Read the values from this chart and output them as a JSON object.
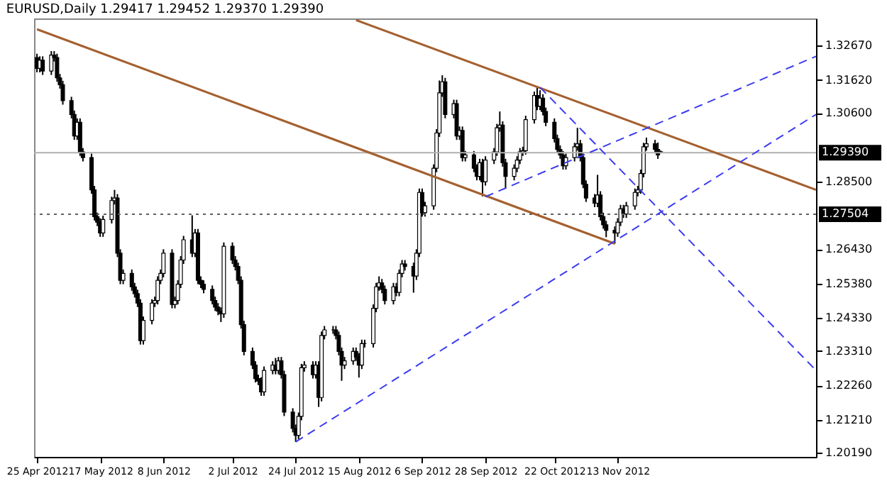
{
  "chart_data": {
    "type": "candlestick",
    "title": "EURUSD,Daily  1.29417 1.29452 1.29370 1.29390",
    "color": "#000000",
    "x": [
      "2012-04-25",
      "2012-04-26",
      "2012-04-27",
      "2012-04-30",
      "2012-05-01",
      "2012-05-02",
      "2012-05-03",
      "2012-05-04",
      "2012-05-07",
      "2012-05-08",
      "2012-05-09",
      "2012-05-10",
      "2012-05-11",
      "2012-05-14",
      "2012-05-15",
      "2012-05-16",
      "2012-05-17",
      "2012-05-18",
      "2012-05-21",
      "2012-05-22",
      "2012-05-23",
      "2012-05-24",
      "2012-05-25",
      "2012-05-28",
      "2012-05-29",
      "2012-05-30",
      "2012-05-31",
      "2012-06-01",
      "2012-06-04",
      "2012-06-05",
      "2012-06-06",
      "2012-06-07",
      "2012-06-08",
      "2012-06-11",
      "2012-06-12",
      "2012-06-13",
      "2012-06-14",
      "2012-06-15",
      "2012-06-18",
      "2012-06-19",
      "2012-06-20",
      "2012-06-21",
      "2012-06-22",
      "2012-06-25",
      "2012-06-26",
      "2012-06-27",
      "2012-06-28",
      "2012-06-29",
      "2012-07-02",
      "2012-07-03",
      "2012-07-04",
      "2012-07-05",
      "2012-07-06",
      "2012-07-09",
      "2012-07-10",
      "2012-07-11",
      "2012-07-12",
      "2012-07-13",
      "2012-07-16",
      "2012-07-17",
      "2012-07-18",
      "2012-07-19",
      "2012-07-20",
      "2012-07-23",
      "2012-07-24",
      "2012-07-25",
      "2012-07-26",
      "2012-07-27",
      "2012-07-30",
      "2012-07-31",
      "2012-08-01",
      "2012-08-02",
      "2012-08-03",
      "2012-08-06",
      "2012-08-07",
      "2012-08-08",
      "2012-08-09",
      "2012-08-10",
      "2012-08-13",
      "2012-08-14",
      "2012-08-15",
      "2012-08-16",
      "2012-08-17",
      "2012-08-20",
      "2012-08-21",
      "2012-08-22",
      "2012-08-23",
      "2012-08-24",
      "2012-08-27",
      "2012-08-28",
      "2012-08-29",
      "2012-08-30",
      "2012-08-31",
      "2012-09-03",
      "2012-09-04",
      "2012-09-05",
      "2012-09-06",
      "2012-09-07",
      "2012-09-10",
      "2012-09-11",
      "2012-09-12",
      "2012-09-13",
      "2012-09-14",
      "2012-09-17",
      "2012-09-18",
      "2012-09-19",
      "2012-09-20",
      "2012-09-21",
      "2012-09-24",
      "2012-09-25",
      "2012-09-26",
      "2012-09-27",
      "2012-09-28",
      "2012-10-01",
      "2012-10-02",
      "2012-10-03",
      "2012-10-04",
      "2012-10-05",
      "2012-10-08",
      "2012-10-09",
      "2012-10-10",
      "2012-10-11",
      "2012-10-12",
      "2012-10-15",
      "2012-10-16",
      "2012-10-17",
      "2012-10-18",
      "2012-10-19",
      "2012-10-22",
      "2012-10-23",
      "2012-10-24",
      "2012-10-25",
      "2012-10-26",
      "2012-10-29",
      "2012-10-30",
      "2012-10-31",
      "2012-11-01",
      "2012-11-02",
      "2012-11-05",
      "2012-11-06",
      "2012-11-07",
      "2012-11-08",
      "2012-11-09",
      "2012-11-12",
      "2012-11-13",
      "2012-11-14",
      "2012-11-15",
      "2012-11-16",
      "2012-11-19",
      "2012-11-20",
      "2012-11-21",
      "2012-11-22",
      "2012-11-23",
      "2012-11-26",
      "2012-11-27",
      "2012-11-28"
    ],
    "ohlc": [
      [
        1.323,
        1.3242,
        1.3185,
        1.3197
      ],
      [
        1.3197,
        1.3234,
        1.3185,
        1.3222
      ],
      [
        1.3222,
        1.3234,
        1.3177,
        1.3189
      ],
      [
        1.3189,
        1.325,
        1.3177,
        1.3238
      ],
      [
        1.3238,
        1.325,
        1.3218,
        1.323
      ],
      [
        1.323,
        1.3242,
        1.3156,
        1.3168
      ],
      [
        1.3168,
        1.318,
        1.3135,
        1.3147
      ],
      [
        1.3147,
        1.3159,
        1.3086,
        1.3098
      ],
      [
        1.3098,
        1.311,
        1.3044,
        1.3056
      ],
      [
        1.3056,
        1.3068,
        1.2978,
        1.299
      ],
      [
        1.299,
        1.3044,
        1.2978,
        1.3032
      ],
      [
        1.3032,
        1.3044,
        1.2929,
        1.2941
      ],
      [
        1.2941,
        1.2953,
        1.2912,
        1.2924
      ],
      [
        1.2924,
        1.2936,
        1.2813,
        1.2825
      ],
      [
        1.2825,
        1.2837,
        1.2731,
        1.2743
      ],
      [
        1.2743,
        1.2755,
        1.2714,
        1.2726
      ],
      [
        1.2726,
        1.2738,
        1.2681,
        1.2693
      ],
      [
        1.2693,
        1.2746,
        1.2681,
        1.2734
      ],
      [
        1.2734,
        1.2804,
        1.2722,
        1.2792
      ],
      [
        1.2792,
        1.2825,
        1.278,
        1.28
      ],
      [
        1.28,
        1.2812,
        1.2619,
        1.2631
      ],
      [
        1.2631,
        1.2643,
        1.2536,
        1.2548
      ],
      [
        1.2548,
        1.2581,
        1.2536,
        1.2569
      ],
      [
        1.2569,
        1.2581,
        1.2516,
        1.2528
      ],
      [
        1.2528,
        1.254,
        1.2495,
        1.2507
      ],
      [
        1.2507,
        1.2519,
        1.2466,
        1.2478
      ],
      [
        1.2478,
        1.249,
        1.2351,
        1.2363
      ],
      [
        1.2363,
        1.2437,
        1.2351,
        1.2425
      ],
      [
        1.2425,
        1.249,
        1.2413,
        1.2478
      ],
      [
        1.2478,
        1.2498,
        1.2466,
        1.2486
      ],
      [
        1.2486,
        1.256,
        1.2474,
        1.2548
      ],
      [
        1.2548,
        1.2581,
        1.2536,
        1.2569
      ],
      [
        1.2569,
        1.2643,
        1.2557,
        1.2631
      ],
      [
        1.2631,
        1.2643,
        1.2462,
        1.2474
      ],
      [
        1.2474,
        1.2498,
        1.2462,
        1.2486
      ],
      [
        1.2486,
        1.2548,
        1.2474,
        1.2536
      ],
      [
        1.2536,
        1.2622,
        1.2524,
        1.261
      ],
      [
        1.261,
        1.2684,
        1.2598,
        1.2672
      ],
      [
        1.2672,
        1.2747,
        1.2619,
        1.2631
      ],
      [
        1.2631,
        1.2705,
        1.2619,
        1.2693
      ],
      [
        1.2693,
        1.2705,
        1.2536,
        1.2548
      ],
      [
        1.2548,
        1.256,
        1.2524,
        1.2536
      ],
      [
        1.2536,
        1.2548,
        1.2508,
        1.252
      ],
      [
        1.252,
        1.2532,
        1.2474,
        1.2486
      ],
      [
        1.2486,
        1.2498,
        1.2454,
        1.2466
      ],
      [
        1.2466,
        1.2478,
        1.2441,
        1.2453
      ],
      [
        1.2453,
        1.2465,
        1.242,
        1.2445
      ],
      [
        1.2445,
        1.2664,
        1.2433,
        1.2652
      ],
      [
        1.2652,
        1.2664,
        1.2598,
        1.261
      ],
      [
        1.261,
        1.2622,
        1.2578,
        1.259
      ],
      [
        1.259,
        1.2602,
        1.2536,
        1.2548
      ],
      [
        1.2548,
        1.256,
        1.24,
        1.2412
      ],
      [
        1.2412,
        1.2424,
        1.2318,
        1.233
      ],
      [
        1.233,
        1.2342,
        1.2276,
        1.2288
      ],
      [
        1.2288,
        1.23,
        1.2235,
        1.2247
      ],
      [
        1.2247,
        1.2259,
        1.2227,
        1.2239
      ],
      [
        1.2239,
        1.2251,
        1.2194,
        1.2206
      ],
      [
        1.2206,
        1.2284,
        1.2194,
        1.2272
      ],
      [
        1.2272,
        1.23,
        1.226,
        1.2288
      ],
      [
        1.2288,
        1.231,
        1.226,
        1.2272
      ],
      [
        1.2272,
        1.2313,
        1.226,
        1.2301
      ],
      [
        1.2301,
        1.2313,
        1.2247,
        1.2259
      ],
      [
        1.2259,
        1.2271,
        1.2132,
        1.2144
      ],
      [
        1.2144,
        1.2156,
        1.2082,
        1.2094
      ],
      [
        1.2094,
        1.2106,
        1.2053,
        1.2073
      ],
      [
        1.2073,
        1.2143,
        1.2061,
        1.2131
      ],
      [
        1.2131,
        1.2292,
        1.2119,
        1.228
      ],
      [
        1.228,
        1.23,
        1.2268,
        1.2288
      ],
      [
        1.2288,
        1.23,
        1.2247,
        1.2259
      ],
      [
        1.2259,
        1.23,
        1.2247,
        1.2288
      ],
      [
        1.2288,
        1.23,
        1.216,
        1.2189
      ],
      [
        1.2189,
        1.2391,
        1.2177,
        1.2379
      ],
      [
        1.2379,
        1.2408,
        1.2367,
        1.2396
      ],
      [
        1.2396,
        1.2408,
        1.2384,
        1.2396
      ],
      [
        1.2396,
        1.2408,
        1.2367,
        1.2379
      ],
      [
        1.2379,
        1.2391,
        1.2318,
        1.233
      ],
      [
        1.233,
        1.2342,
        1.224,
        1.2288
      ],
      [
        1.2288,
        1.2313,
        1.2276,
        1.2301
      ],
      [
        1.2301,
        1.2342,
        1.2289,
        1.233
      ],
      [
        1.233,
        1.2342,
        1.2301,
        1.2313
      ],
      [
        1.2313,
        1.2325,
        1.225,
        1.2288
      ],
      [
        1.2288,
        1.2366,
        1.2276,
        1.2354
      ],
      [
        1.2354,
        1.2366,
        1.2342,
        1.2354
      ],
      [
        1.2354,
        1.2474,
        1.2342,
        1.2462
      ],
      [
        1.2462,
        1.254,
        1.245,
        1.2528
      ],
      [
        1.2528,
        1.256,
        1.2516,
        1.254
      ],
      [
        1.254,
        1.2552,
        1.2508,
        1.252
      ],
      [
        1.252,
        1.2532,
        1.2474,
        1.2486
      ],
      [
        1.2486,
        1.254,
        1.2474,
        1.2528
      ],
      [
        1.2528,
        1.254,
        1.2499,
        1.2511
      ],
      [
        1.2511,
        1.2581,
        1.2499,
        1.2569
      ],
      [
        1.2569,
        1.261,
        1.2557,
        1.2598
      ],
      [
        1.2598,
        1.261,
        1.2578,
        1.259
      ],
      [
        1.259,
        1.2602,
        1.251,
        1.2561
      ],
      [
        1.2561,
        1.2643,
        1.2549,
        1.2631
      ],
      [
        1.2631,
        1.2829,
        1.2619,
        1.2817
      ],
      [
        1.2817,
        1.2829,
        1.2743,
        1.2755
      ],
      [
        1.2755,
        1.2788,
        1.2743,
        1.2776
      ],
      [
        1.2776,
        1.2903,
        1.2764,
        1.2891
      ],
      [
        1.2891,
        1.3011,
        1.2879,
        1.2999
      ],
      [
        1.2999,
        1.316,
        1.2987,
        1.3122
      ],
      [
        1.3122,
        1.3176,
        1.311,
        1.3156
      ],
      [
        1.3156,
        1.3168,
        1.3044,
        1.3056
      ],
      [
        1.3056,
        1.3101,
        1.3044,
        1.3089
      ],
      [
        1.3089,
        1.3101,
        1.2978,
        1.299
      ],
      [
        1.299,
        1.3019,
        1.2978,
        1.3007
      ],
      [
        1.3007,
        1.3019,
        1.2912,
        1.2924
      ],
      [
        1.2924,
        1.2944,
        1.2912,
        1.2932
      ],
      [
        1.2932,
        1.2944,
        1.2879,
        1.2891
      ],
      [
        1.2891,
        1.2903,
        1.2854,
        1.2866
      ],
      [
        1.2866,
        1.292,
        1.2854,
        1.2908
      ],
      [
        1.2908,
        1.292,
        1.2805,
        1.285
      ],
      [
        1.285,
        1.2928,
        1.2838,
        1.2916
      ],
      [
        1.2916,
        1.2953,
        1.2904,
        1.2941
      ],
      [
        1.2941,
        1.3027,
        1.2929,
        1.3015
      ],
      [
        1.3015,
        1.3065,
        1.3003,
        1.3023
      ],
      [
        1.3023,
        1.3035,
        1.2896,
        1.2908
      ],
      [
        1.2908,
        1.292,
        1.283,
        1.2866
      ],
      [
        1.2866,
        1.2903,
        1.2854,
        1.2891
      ],
      [
        1.2891,
        1.2928,
        1.2879,
        1.2916
      ],
      [
        1.2916,
        1.2953,
        1.2904,
        1.2941
      ],
      [
        1.2941,
        1.2957,
        1.2929,
        1.2945
      ],
      [
        1.2945,
        1.3052,
        1.2933,
        1.304
      ],
      [
        1.304,
        1.3126,
        1.3028,
        1.3114
      ],
      [
        1.3114,
        1.314,
        1.3069,
        1.3081
      ],
      [
        1.3081,
        1.313,
        1.3069,
        1.3106
      ],
      [
        1.3106,
        1.3118,
        1.3053,
        1.3065
      ],
      [
        1.3065,
        1.3077,
        1.302,
        1.3032
      ],
      [
        1.3032,
        1.3044,
        1.297,
        1.2982
      ],
      [
        1.2982,
        1.2994,
        1.2937,
        1.2949
      ],
      [
        1.2949,
        1.2961,
        1.292,
        1.2932
      ],
      [
        1.2932,
        1.2944,
        1.2887,
        1.2899
      ],
      [
        1.2899,
        1.2936,
        1.2887,
        1.2924
      ],
      [
        1.2924,
        1.2969,
        1.2912,
        1.2957
      ],
      [
        1.2957,
        1.3015,
        1.2945,
        1.2966
      ],
      [
        1.2966,
        1.2978,
        1.2912,
        1.2924
      ],
      [
        1.2924,
        1.2936,
        1.283,
        1.2842
      ],
      [
        1.2842,
        1.2854,
        1.2788,
        1.28
      ],
      [
        1.28,
        1.2812,
        1.2772,
        1.2784
      ],
      [
        1.2784,
        1.2871,
        1.2772,
        1.2809
      ],
      [
        1.2809,
        1.2821,
        1.2731,
        1.2743
      ],
      [
        1.2743,
        1.2755,
        1.2706,
        1.2718
      ],
      [
        1.2718,
        1.273,
        1.268,
        1.2701
      ],
      [
        1.2701,
        1.2713,
        1.266,
        1.2693
      ],
      [
        1.2693,
        1.2738,
        1.2681,
        1.2726
      ],
      [
        1.2726,
        1.2779,
        1.2714,
        1.2767
      ],
      [
        1.2767,
        1.2779,
        1.2739,
        1.2751
      ],
      [
        1.2751,
        1.2788,
        1.2739,
        1.2776
      ],
      [
        1.2776,
        1.2829,
        1.2764,
        1.2817
      ],
      [
        1.2817,
        1.2837,
        1.2805,
        1.2825
      ],
      [
        1.2825,
        1.2887,
        1.2813,
        1.2875
      ],
      [
        1.2875,
        1.2969,
        1.2863,
        1.2957
      ],
      [
        1.2957,
        1.2985,
        1.2945,
        1.2966
      ],
      [
        1.2966,
        1.2978,
        1.2937,
        1.2949
      ],
      [
        1.2949,
        1.297,
        1.292,
        1.2932
      ],
      [
        1.29417,
        1.29452,
        1.2937,
        1.2939
      ]
    ],
    "series": [
      {
        "type": "line",
        "color": "#a5602f",
        "line_style": "solid",
        "x": [
          "2012-04-25",
          "2012-11-12"
        ],
        "values": [
          1.3317,
          1.266
        ]
      },
      {
        "type": "line",
        "color": "#a5602f",
        "line_style": "solid",
        "x": [
          "2012-08-14",
          "2013-01-21"
        ],
        "values": [
          1.3345,
          1.2825
        ]
      },
      {
        "type": "line",
        "color": "#3c3cf0",
        "line_style": "dashed",
        "x": [
          "2012-07-24",
          "2013-01-21"
        ],
        "values": [
          1.2053,
          1.3056
        ]
      },
      {
        "type": "line",
        "color": "#3c3cf0",
        "line_style": "dashed",
        "x": [
          "2012-09-28",
          "2013-01-21"
        ],
        "values": [
          1.2804,
          1.3234
        ]
      },
      {
        "type": "line",
        "color": "#3c3cf0",
        "line_style": "dashed",
        "x": [
          "2012-10-17",
          "2013-01-21"
        ],
        "values": [
          1.3139,
          1.2272
        ]
      }
    ],
    "ref_lines": [
      {
        "axis": "y",
        "value": 1.2939,
        "label": "1.29390",
        "color": "#b0b0b0",
        "line_style": "solid"
      },
      {
        "axis": "y",
        "value": 1.27504,
        "label": "1.27504",
        "color": "#606060",
        "line_style": "dotted"
      }
    ],
    "xlim": [
      "2012-04-24",
      "2013-01-21"
    ],
    "xticks": [
      {
        "value": "2012-04-25",
        "label": "25 Apr 2012"
      },
      {
        "value": "2012-05-17",
        "label": "17 May 2012"
      },
      {
        "value": "2012-06-08",
        "label": "8 Jun 2012"
      },
      {
        "value": "2012-07-02",
        "label": "2 Jul 2012"
      },
      {
        "value": "2012-07-24",
        "label": "24 Jul 2012"
      },
      {
        "value": "2012-08-15",
        "label": "15 Aug 2012"
      },
      {
        "value": "2012-09-06",
        "label": "6 Sep 2012"
      },
      {
        "value": "2012-09-28",
        "label": "28 Sep 2012"
      },
      {
        "value": "2012-10-22",
        "label": "22 Oct 2012"
      },
      {
        "value": "2012-11-13",
        "label": "13 Nov 2012"
      }
    ],
    "ylim": [
      1.2007,
      1.335
    ],
    "yticks": [
      {
        "value": 1.3267,
        "label": "1.32670"
      },
      {
        "value": 1.3162,
        "label": "1.31620"
      },
      {
        "value": 1.306,
        "label": "1.30600"
      },
      {
        "value": 1.285,
        "label": "1.28500"
      },
      {
        "value": 1.2643,
        "label": "1.26430"
      },
      {
        "value": 1.2538,
        "label": "1.25380"
      },
      {
        "value": 1.2433,
        "label": "1.24330"
      },
      {
        "value": 1.2331,
        "label": "1.23310"
      },
      {
        "value": 1.2226,
        "label": "1.22260"
      },
      {
        "value": 1.2121,
        "label": "1.21210"
      },
      {
        "value": 1.2019,
        "label": "1.20190"
      }
    ],
    "grid": false
  }
}
